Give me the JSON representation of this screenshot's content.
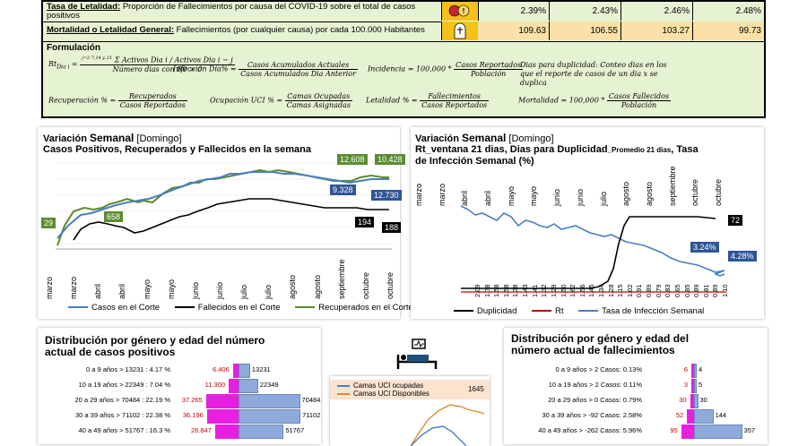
{
  "top_table": {
    "rows": [
      {
        "label_bold": "Tasa de Letalidad:",
        "label_rest": " Proporción de Fallecimientos por causa del COVID-19 sobre el total de casos positivos",
        "icon": "virus-warning-icon",
        "values": [
          "2.39%",
          "2.43%",
          "2.46%",
          "2.48%"
        ]
      },
      {
        "label_bold": "Mortalidad o Letalidad General:",
        "label_rest": " Fallecimientos (por cualquier causa) por cada 100.000 Habitantes",
        "icon": "tombstone-icon",
        "values": [
          "109.63",
          "106.55",
          "103.27",
          "99.73"
        ]
      }
    ],
    "formula_title": "Formulación",
    "formulas": {
      "rt_lhs": "Rt",
      "rt_sub": "Dia i",
      "rt_num": "Σ Activos Dia i / Activos Dia i − j",
      "rt_num_idx": "j=2  7,14 y 21",
      "rt_den": "Número dias con R0 > 0",
      "inf_lhs": "Infección Dia% =",
      "inf_num": "Casos Acumulados Actuales",
      "inf_den": "Casos  Acumulados Dia Anterior",
      "inc_lhs": "Incidencia = 100,000 *",
      "inc_num": "Casos Reportados",
      "inc_den": "Población",
      "dup": "Dias para duplicidad: Conteo dias en los que el reporte de casos de un dia x se duplica",
      "rec_lhs": "Recuperación % =",
      "rec_num": "Recuperados",
      "rec_den": "Casos Reportados",
      "uci_lhs": "Ocupación UCI % =",
      "uci_num": "Camas Ocupadas",
      "uci_den": "Camas Asignadas",
      "let_lhs": "Letalidad % =",
      "let_num": "Fallecimientos",
      "let_den": "Casos Reportados",
      "mor_lhs": "Mortalidad = 100,000 *",
      "mor_num": "Casos Fallecidos",
      "mor_den": "Población"
    }
  },
  "chart1": {
    "title_a": "Variación ",
    "title_b": "Semanal",
    "title_c": " [Domingo]",
    "subtitle": "Casos Positivos, Recuperados y Fallecidos en la semana",
    "months": [
      "marzo",
      "marzo",
      "abril",
      "abril",
      "mayo",
      "mayo",
      "junio",
      "junio",
      "julio",
      "julio",
      "agosto",
      "agosto",
      "septiembre",
      "octubre",
      "octubre"
    ],
    "labels": {
      "rec_start": "29",
      "rec_peak_early": "658",
      "rec_late": "12.608",
      "rec_end": "10.428",
      "cas_late": "9.328",
      "cas_end": "12.730",
      "fal_late": "194",
      "fal_end": "188"
    },
    "legend": [
      "Casos en el  Corte",
      "Fallecidos en el Corte",
      "Recuperados en el Corte"
    ],
    "colors": {
      "casos": "#4a7fc1",
      "fallecidos": "#000000",
      "recuperados": "#5b8c2f"
    }
  },
  "chart2": {
    "title_a": "Variación ",
    "title_b": "Semanal",
    "title_c": " [Domingo]",
    "subtitle_a": "Rt_ventana 21 dias, Dias para Duplicidad",
    "subtitle_small": "_Promedio 21 dias",
    "subtitle_b": ", Tasa de Infección Semanal (%)",
    "months": [
      "marzo",
      "marzo",
      "abril",
      "abril",
      "mayo",
      "mayo",
      "junio",
      "junio",
      "julio",
      "agosto",
      "agosto",
      "septiembre",
      "octubre",
      "octubre"
    ],
    "rt_values": [
      "2.09",
      "1.78",
      "1.58",
      "1.58",
      "1.38",
      "1.43",
      "1.41",
      "1.32",
      "1.29",
      "1.50",
      "1.62",
      "1.56",
      "1.45",
      "1.34",
      "1.28",
      "1.15",
      "1.02",
      "0.91",
      "0.89",
      "0.79",
      "0.83",
      "0.65",
      "0.85",
      "0.89",
      "0.81",
      "0.89",
      "1.10"
    ],
    "labels": {
      "dup_end": "72",
      "inf_late": "3.24%",
      "inf_end": "4.28%"
    },
    "legend": [
      "Duplicidad",
      "Rt",
      "Tasa de Infección Semanal"
    ],
    "colors": {
      "dup": "#000000",
      "rt": "#c00000",
      "inf": "#4a7fc1"
    }
  },
  "pyramid1": {
    "title": "Distribución por género y edad del número actual de casos positivos",
    "rows": [
      {
        "label": "0 a 9 años > 13231 : 4.17 %",
        "female": "6.406",
        "male": "13231"
      },
      {
        "label": "10 a 19 años > 22349 : 7.04 %",
        "female": "11.300",
        "male": "22349"
      },
      {
        "label": "20 a 29 años > 70484 : 22.19 %",
        "female": "37.265",
        "male": "70484"
      },
      {
        "label": "30 a 39 años > 71102 : 22.38 %",
        "female": "36.196",
        "male": "71102"
      },
      {
        "label": "40 a 49 años > 51767 : 16.3 %",
        "female": "26.847",
        "male": "51767"
      }
    ]
  },
  "uci": {
    "legend": [
      "Camas UCI ocupadas",
      "Camas UCI Disponibles"
    ],
    "peak_label": "1645",
    "colors": {
      "ocupadas": "#4a7fc1",
      "disponibles": "#e8892a"
    }
  },
  "pyramid2": {
    "title": "Distribución por género y edad del número actual de fallecimientos",
    "rows": [
      {
        "label": "0 a 9 años > 2 Casos: 0.13%",
        "female": "6",
        "male": "4"
      },
      {
        "label": "10 a 19 años > 2 Casos: 0.11%",
        "female": "3",
        "male": "5"
      },
      {
        "label": "20 a 29 años > 0 Casos: 0.79%",
        "female": "30",
        "male": "30"
      },
      {
        "label": "30 a 39 años > -92 Casos: 2.58%",
        "female": "52",
        "male": "144"
      },
      {
        "label": "40 a 49 años > -262 Casos: 5.96%",
        "female": "95",
        "male": "357"
      }
    ]
  }
}
